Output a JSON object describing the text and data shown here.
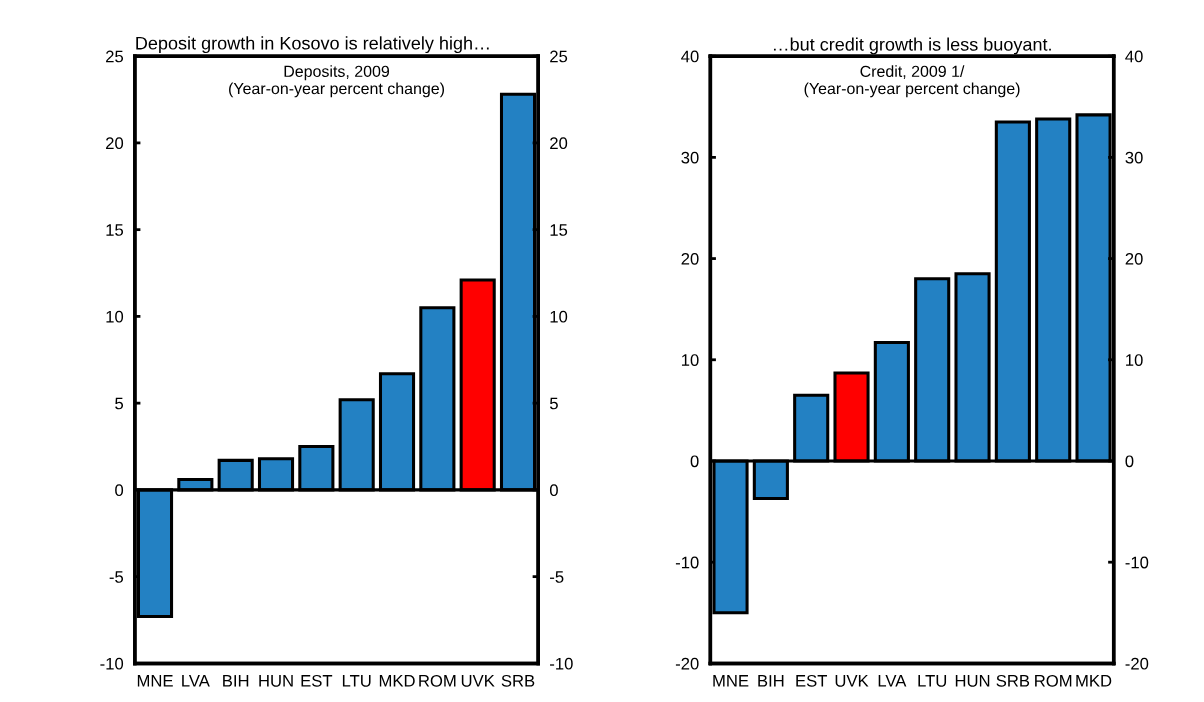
{
  "chart_data": [
    {
      "type": "bar",
      "title": "Deposit growth in Kosovo is relatively high…",
      "subtitle": "Deposits, 2009\n(Year-on-year percent change)",
      "categories": [
        "MNE",
        "LVA",
        "BIH",
        "HUN",
        "EST",
        "LTU",
        "MKD",
        "ROM",
        "UVK",
        "SRB"
      ],
      "values": [
        -7.3,
        0.6,
        1.7,
        1.8,
        2.5,
        5.2,
        6.7,
        10.5,
        12.1,
        22.8
      ],
      "colors": [
        "#2381c3",
        "#2381c3",
        "#2381c3",
        "#2381c3",
        "#2381c3",
        "#2381c3",
        "#2381c3",
        "#2381c3",
        "#ff0000",
        "#2381c3"
      ],
      "ref_lines": [
        {
          "axis": "y",
          "value": 0,
          "color": "#000000"
        }
      ],
      "ylim": [
        -10,
        25
      ],
      "yticks": [
        -10,
        -5,
        0,
        5,
        10,
        15,
        20,
        25
      ],
      "y2lim": [
        -10,
        25
      ],
      "y2ticks": [
        -10,
        -5,
        0,
        5,
        10,
        15,
        20,
        25
      ],
      "grid": false,
      "legend": false
    },
    {
      "type": "bar",
      "title": "…but credit growth is less buoyant.",
      "subtitle": "Credit, 2009 1/\n(Year-on-year percent change)",
      "categories": [
        "MNE",
        "BIH",
        "EST",
        "UVK",
        "LVA",
        "LTU",
        "HUN",
        "SRB",
        "ROM",
        "MKD"
      ],
      "values": [
        -15,
        -3.7,
        6.5,
        8.7,
        11.7,
        18.0,
        18.5,
        33.5,
        33.8,
        34.2
      ],
      "colors": [
        "#2381c3",
        "#2381c3",
        "#2381c3",
        "#ff0000",
        "#2381c3",
        "#2381c3",
        "#2381c3",
        "#2381c3",
        "#2381c3",
        "#2381c3"
      ],
      "ref_lines": [
        {
          "axis": "y",
          "value": 0,
          "color": "#000000"
        }
      ],
      "ylim": [
        -20,
        40
      ],
      "yticks": [
        -20,
        -10,
        0,
        10,
        20,
        30,
        40
      ],
      "y2lim": [
        -20,
        40
      ],
      "y2ticks": [
        -20,
        -10,
        0,
        10,
        20,
        30,
        40
      ],
      "grid": false,
      "legend": false
    }
  ]
}
